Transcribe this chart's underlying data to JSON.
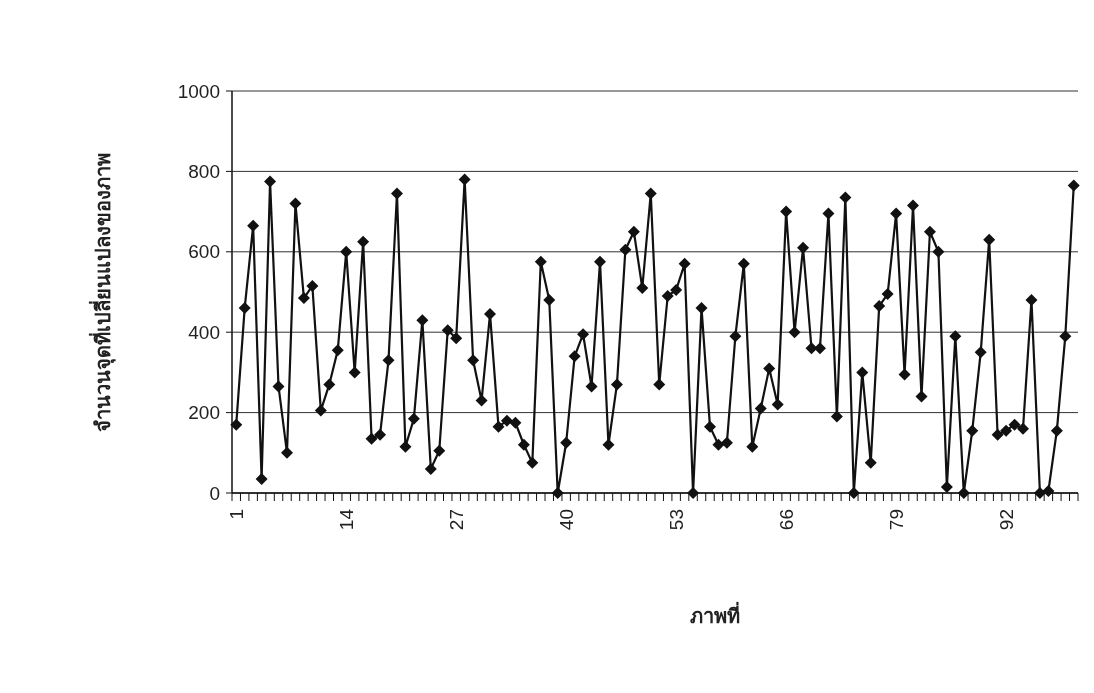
{
  "chart_data": {
    "type": "line",
    "xlabel": "ภาพที่",
    "ylabel": "จำนวนจุดที่เปลี่ยนแปลงของภาพ",
    "categories": [
      "1",
      null,
      null,
      null,
      null,
      null,
      null,
      null,
      null,
      null,
      null,
      null,
      null,
      "14",
      null,
      null,
      null,
      null,
      null,
      null,
      null,
      null,
      null,
      null,
      null,
      null,
      "27",
      null,
      null,
      null,
      null,
      null,
      null,
      null,
      null,
      null,
      null,
      null,
      null,
      "40",
      null,
      null,
      null,
      null,
      null,
      null,
      null,
      null,
      null,
      null,
      null,
      null,
      "53",
      null,
      null,
      null,
      null,
      null,
      null,
      null,
      null,
      null,
      null,
      null,
      null,
      "66",
      null,
      null,
      null,
      null,
      null,
      null,
      null,
      null,
      null,
      null,
      null,
      null,
      "79",
      null,
      null,
      null,
      null,
      null,
      null,
      null,
      null,
      null,
      null,
      null,
      null,
      "92",
      null,
      null,
      null,
      null,
      null,
      null,
      null,
      null
    ],
    "series": [
      {
        "color": "#111111",
        "values": [
          170,
          460,
          665,
          35,
          775,
          265,
          100,
          720,
          485,
          515,
          205,
          270,
          355,
          600,
          300,
          625,
          135,
          145,
          330,
          745,
          115,
          185,
          430,
          60,
          105,
          405,
          385,
          780,
          330,
          230,
          445,
          165,
          180,
          175,
          120,
          75,
          575,
          480,
          0,
          125,
          340,
          395,
          265,
          575,
          120,
          270,
          605,
          650,
          510,
          745,
          270,
          490,
          505,
          570,
          0,
          460,
          165,
          120,
          125,
          390,
          570,
          115,
          210,
          310,
          220,
          700,
          400,
          610,
          360,
          360,
          695,
          190,
          735,
          0,
          300,
          75,
          465,
          495,
          695,
          295,
          715,
          240,
          650,
          600,
          15,
          390,
          0,
          155,
          350,
          630,
          145,
          155,
          170,
          160,
          480,
          0,
          5,
          155,
          390,
          765
        ]
      }
    ],
    "ylim": [
      0,
      1000
    ],
    "yticks": [
      0,
      200,
      400,
      600,
      800,
      1000
    ],
    "grid": "y",
    "marker": "diamond",
    "line_style": "solid"
  }
}
